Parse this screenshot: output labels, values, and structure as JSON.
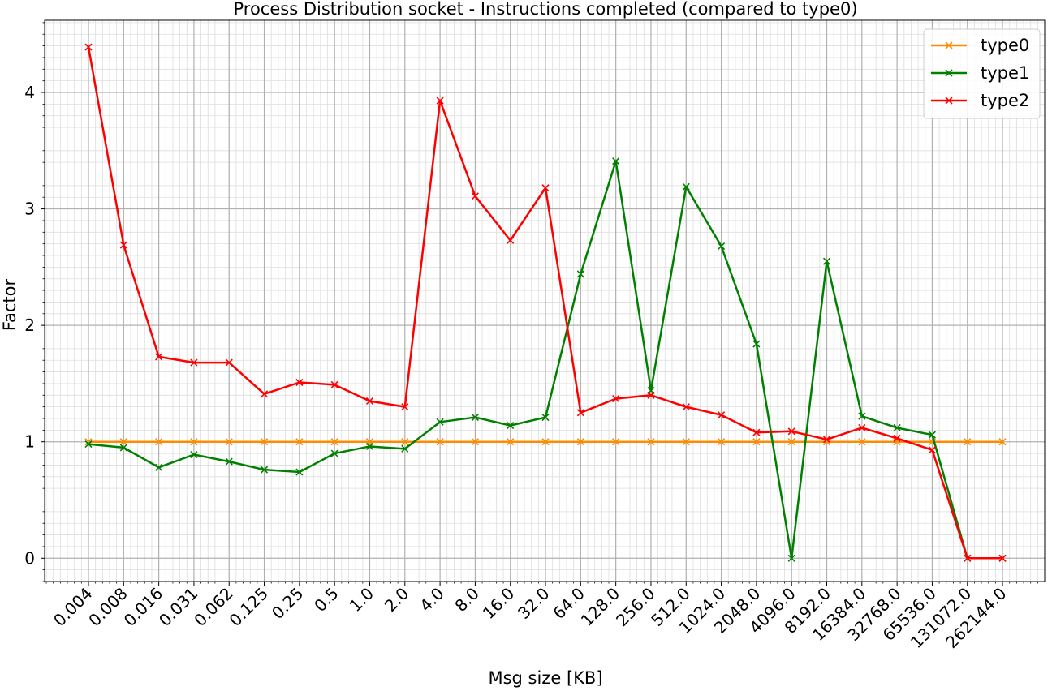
{
  "chart_data": {
    "type": "line",
    "title": "Process Distribution socket - Instructions completed (compared to type0)",
    "xlabel": "Msg size [KB]",
    "ylabel": "Factor",
    "ylim": [
      -0.2,
      4.62
    ],
    "y_ticks": [
      0,
      1,
      2,
      3,
      4
    ],
    "y_minor_step": 0.1,
    "grid": true,
    "legend_position": "top-right",
    "categories": [
      "0.004",
      "0.008",
      "0.016",
      "0.031",
      "0.062",
      "0.125",
      "0.25",
      "0.5",
      "1.0",
      "2.0",
      "4.0",
      "8.0",
      "16.0",
      "32.0",
      "64.0",
      "128.0",
      "256.0",
      "512.0",
      "1024.0",
      "2048.0",
      "4096.0",
      "8192.0",
      "16384.0",
      "32768.0",
      "65536.0",
      "131072.0",
      "262144.0"
    ],
    "series": [
      {
        "name": "type0",
        "color": "#ff8c00",
        "values": [
          1,
          1,
          1,
          1,
          1,
          1,
          1,
          1,
          1,
          1,
          1,
          1,
          1,
          1,
          1,
          1,
          1,
          1,
          1,
          1,
          1,
          1,
          1,
          1,
          1,
          1,
          1
        ]
      },
      {
        "name": "type1",
        "color": "#008000",
        "values": [
          0.98,
          0.95,
          0.78,
          0.89,
          0.83,
          0.76,
          0.74,
          0.9,
          0.96,
          0.94,
          1.17,
          1.21,
          1.14,
          1.21,
          2.44,
          3.41,
          1.44,
          3.19,
          2.68,
          1.84,
          0.0,
          2.55,
          1.22,
          1.12,
          1.06,
          0.0,
          0.0
        ]
      },
      {
        "name": "type2",
        "color": "#ff0000",
        "values": [
          4.39,
          2.69,
          1.73,
          1.68,
          1.68,
          1.41,
          1.51,
          1.49,
          1.35,
          1.3,
          3.93,
          3.11,
          2.73,
          3.18,
          1.25,
          1.37,
          1.4,
          1.3,
          1.23,
          1.08,
          1.09,
          1.02,
          1.12,
          1.03,
          0.93,
          0.0,
          0.0
        ]
      }
    ]
  }
}
